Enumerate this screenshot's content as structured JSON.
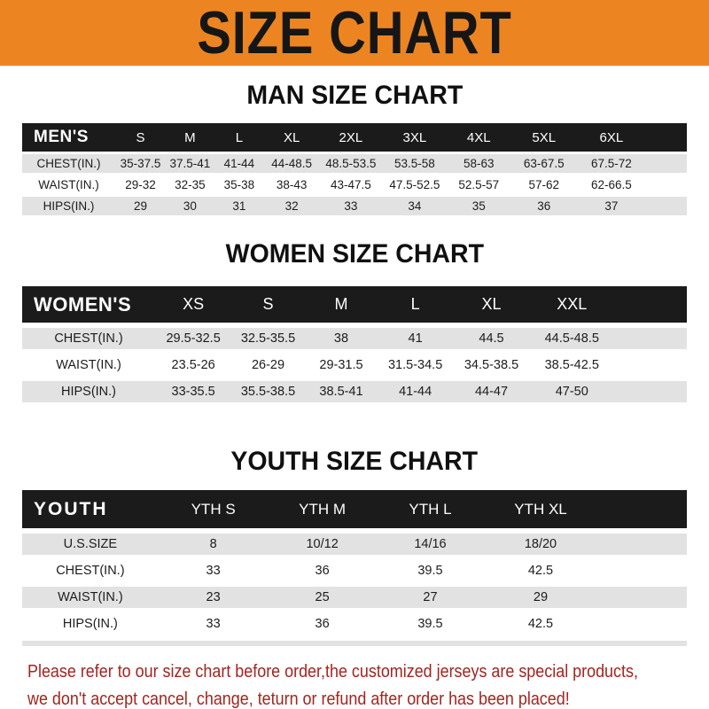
{
  "banner": {
    "title": "SIZE CHART"
  },
  "sections": [
    {
      "heading": "MAN SIZE CHART",
      "table": {
        "label": "MEN'S",
        "columns": [
          "S",
          "M",
          "L",
          "XL",
          "2XL",
          "3XL",
          "4XL",
          "5XL",
          "6XL"
        ],
        "rows": [
          {
            "label": "CHEST(IN.)",
            "values": [
              "35-37.5",
              "37.5-41",
              "41-44",
              "44-48.5",
              "48.5-53.5",
              "53.5-58",
              "58-63",
              "63-67.5",
              "67.5-72"
            ]
          },
          {
            "label": "WAIST(IN.)",
            "values": [
              "29-32",
              "32-35",
              "35-38",
              "38-43",
              "43-47.5",
              "47.5-52.5",
              "52.5-57",
              "57-62",
              "62-66.5"
            ]
          },
          {
            "label": "HIPS(IN.)",
            "values": [
              "29",
              "30",
              "31",
              "32",
              "33",
              "34",
              "35",
              "36",
              "37"
            ]
          }
        ]
      }
    },
    {
      "heading": "WOMEN SIZE CHART",
      "table": {
        "label": "WOMEN'S",
        "columns": [
          "XS",
          "S",
          "M",
          "L",
          "XL",
          "XXL"
        ],
        "rows": [
          {
            "label": "CHEST(IN.)",
            "values": [
              "29.5-32.5",
              "32.5-35.5",
              "38",
              "41",
              "44.5",
              "44.5-48.5"
            ]
          },
          {
            "label": "WAIST(IN.)",
            "values": [
              "23.5-26",
              "26-29",
              "29-31.5",
              "31.5-34.5",
              "34.5-38.5",
              "38.5-42.5"
            ]
          },
          {
            "label": "HIPS(IN.)",
            "values": [
              "33-35.5",
              "35.5-38.5",
              "38.5-41",
              "41-44",
              "44-47",
              "47-50"
            ]
          }
        ]
      }
    },
    {
      "heading": "YOUTH SIZE CHART",
      "table": {
        "label": "YOUTH",
        "columns": [
          "YTH S",
          "YTH M",
          "YTH L",
          "YTH XL"
        ],
        "rows": [
          {
            "label": "U.S.SIZE",
            "values": [
              "8",
              "10/12",
              "14/16",
              "18/20"
            ]
          },
          {
            "label": "CHEST(IN.)",
            "values": [
              "33",
              "36",
              "39.5",
              "42.5"
            ]
          },
          {
            "label": "WAIST(IN.)",
            "values": [
              "23",
              "25",
              "27",
              "29"
            ]
          },
          {
            "label": "HIPS(IN.)",
            "values": [
              "33",
              "36",
              "39.5",
              "42.5"
            ]
          }
        ]
      }
    }
  ],
  "footer": {
    "line1": "Please refer to our size chart before order,the customized jerseys are special products,",
    "line2": "we don't accept cancel, change, teturn or refund after order has been placed!"
  },
  "colors": {
    "banner_bg": "#EC8521",
    "banner_text": "#161616",
    "table_header_band": "#1B1B1B",
    "table_header_text": "#FFFFFF",
    "row_alt_gray": "#E2E2E2",
    "body_text": "#1C1C1C",
    "footer_text": "#A3241E"
  }
}
